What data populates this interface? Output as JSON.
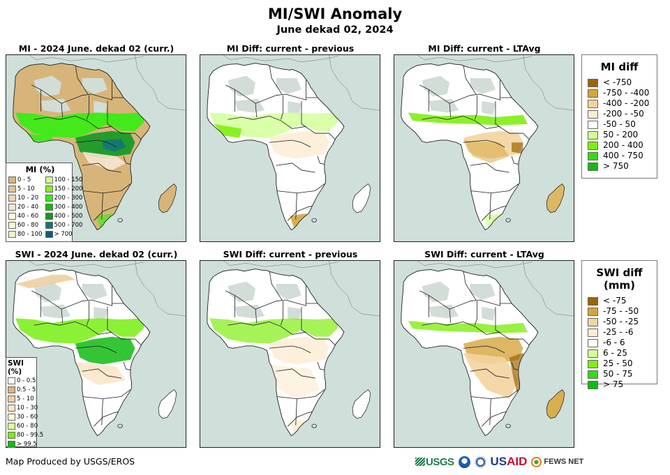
{
  "header": {
    "title": "MI/SWI Anomaly",
    "subtitle": "June dekad 02, 2024"
  },
  "panels": [
    {
      "title": "MI - 2024 June. dekad 02 (curr.)",
      "variable": "MI",
      "kind": "current"
    },
    {
      "title": "MI Diff: current - previous",
      "variable": "MI",
      "kind": "diff-previous"
    },
    {
      "title": "MI Diff: current - LTAvg",
      "variable": "MI",
      "kind": "diff-ltavg"
    },
    {
      "title": "SWI - 2024 June. dekad 02 (curr.)",
      "variable": "SWI",
      "kind": "current"
    },
    {
      "title": "SWI Diff: current - previous",
      "variable": "SWI",
      "kind": "diff-previous"
    },
    {
      "title": "SWI Diff: current - LTAvg",
      "variable": "SWI",
      "kind": "diff-ltavg"
    }
  ],
  "legends": {
    "mi_pct": {
      "title": "MI (%)",
      "items": [
        {
          "label": "0 - 5",
          "color": "#d7b57a"
        },
        {
          "label": "5 - 10",
          "color": "#e2c497"
        },
        {
          "label": "10 - 20",
          "color": "#eed7b9"
        },
        {
          "label": "20 - 40",
          "color": "#f7e6d2"
        },
        {
          "label": "40 - 60",
          "color": "#ffffd8"
        },
        {
          "label": "60 - 80",
          "color": "#f2ffcc"
        },
        {
          "label": "80 - 100",
          "color": "#e4ffc4"
        },
        {
          "label": "100 - 150",
          "color": "#ccff99"
        },
        {
          "label": "150 - 200",
          "color": "#88ee22"
        },
        {
          "label": "200 - 300",
          "color": "#33ee11"
        },
        {
          "label": "300 - 400",
          "color": "#11bb11"
        },
        {
          "label": "400 - 500",
          "color": "#119922"
        },
        {
          "label": "500 - 700",
          "color": "#117777"
        },
        {
          "label": "> 700",
          "color": "#135a7e"
        }
      ]
    },
    "swi_pct": {
      "title": "SWI (%)",
      "items": [
        {
          "label": "0 - 0.5",
          "color": "#ffffff"
        },
        {
          "label": "0.5 - 5",
          "color": "#d7b57a"
        },
        {
          "label": "5 - 10",
          "color": "#eecfa0"
        },
        {
          "label": "10 - 30",
          "color": "#fbe5c8"
        },
        {
          "label": "30 - 60",
          "color": "#ffffd8"
        },
        {
          "label": "60 - 80",
          "color": "#ddff99"
        },
        {
          "label": "80 - 99.5",
          "color": "#77ee11"
        },
        {
          "label": "> 99.5",
          "color": "#11bb11"
        }
      ]
    },
    "mi_diff": {
      "title": "MI diff",
      "items": [
        {
          "label": "< -750",
          "color": "#9c6505"
        },
        {
          "label": "-750 - -400",
          "color": "#d4a53c"
        },
        {
          "label": "-400 - -200",
          "color": "#f3d49f"
        },
        {
          "label": "-200 - -50",
          "color": "#fdedd5"
        },
        {
          "label": "-50 - 50",
          "color": "#ffffff"
        },
        {
          "label": "50 - 200",
          "color": "#d2ff99"
        },
        {
          "label": "200 - 400",
          "color": "#80ee11"
        },
        {
          "label": "400 - 750",
          "color": "#33dd11"
        },
        {
          "label": "> 750",
          "color": "#11bb11"
        }
      ]
    },
    "swi_diff": {
      "title": "SWI diff (mm)",
      "items": [
        {
          "label": "< -75",
          "color": "#9c6505"
        },
        {
          "label": "-75 - -50",
          "color": "#d4a53c"
        },
        {
          "label": "-50 - -25",
          "color": "#f3d49f"
        },
        {
          "label": "-25 - -6",
          "color": "#fdedd5"
        },
        {
          "label": "-6 - 6",
          "color": "#ffffff"
        },
        {
          "label": "6 - 25",
          "color": "#d2ff99"
        },
        {
          "label": "25 - 50",
          "color": "#80ee11"
        },
        {
          "label": "50 - 75",
          "color": "#33dd11"
        },
        {
          "label": "> 75",
          "color": "#11bb11"
        }
      ]
    }
  },
  "footer": {
    "credit": "Map Produced by USGS/EROS",
    "logos": {
      "usgs": "USGS",
      "usaid_a": "US",
      "usaid_b": "AID",
      "fews": "FEWS NET"
    }
  },
  "colors": {
    "ocean": "#cfdfd9",
    "desert_nodata": "#d2ddd8",
    "border": "#1a1a1a"
  }
}
